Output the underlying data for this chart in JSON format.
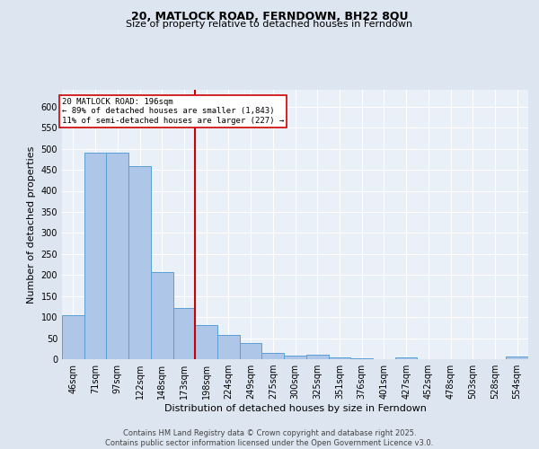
{
  "title_line1": "20, MATLOCK ROAD, FERNDOWN, BH22 8QU",
  "title_line2": "Size of property relative to detached houses in Ferndown",
  "xlabel": "Distribution of detached houses by size in Ferndown",
  "ylabel": "Number of detached properties",
  "categories": [
    "46sqm",
    "71sqm",
    "97sqm",
    "122sqm",
    "148sqm",
    "173sqm",
    "198sqm",
    "224sqm",
    "249sqm",
    "275sqm",
    "300sqm",
    "325sqm",
    "351sqm",
    "376sqm",
    "401sqm",
    "427sqm",
    "452sqm",
    "478sqm",
    "503sqm",
    "528sqm",
    "554sqm"
  ],
  "values": [
    105,
    490,
    490,
    458,
    207,
    122,
    82,
    57,
    39,
    14,
    8,
    11,
    5,
    2,
    0,
    5,
    0,
    0,
    0,
    0,
    6
  ],
  "bar_color": "#aec6e8",
  "bar_edge_color": "#5a9fd4",
  "vline_x_index": 6,
  "vline_color": "#cc0000",
  "annotation_text": "20 MATLOCK ROAD: 196sqm\n← 89% of detached houses are smaller (1,843)\n11% of semi-detached houses are larger (227) →",
  "annotation_box_color": "#ffffff",
  "annotation_box_edge_color": "#cc0000",
  "ylim": [
    0,
    640
  ],
  "yticks": [
    0,
    50,
    100,
    150,
    200,
    250,
    300,
    350,
    400,
    450,
    500,
    550,
    600
  ],
  "footnote": "Contains HM Land Registry data © Crown copyright and database right 2025.\nContains public sector information licensed under the Open Government Licence v3.0.",
  "bg_color": "#dde5f0",
  "plot_bg_color": "#eaf0f8",
  "grid_color": "#ffffff",
  "title1_fontsize": 9,
  "title2_fontsize": 8,
  "xlabel_fontsize": 8,
  "ylabel_fontsize": 8,
  "tick_fontsize": 7,
  "footnote_fontsize": 6
}
